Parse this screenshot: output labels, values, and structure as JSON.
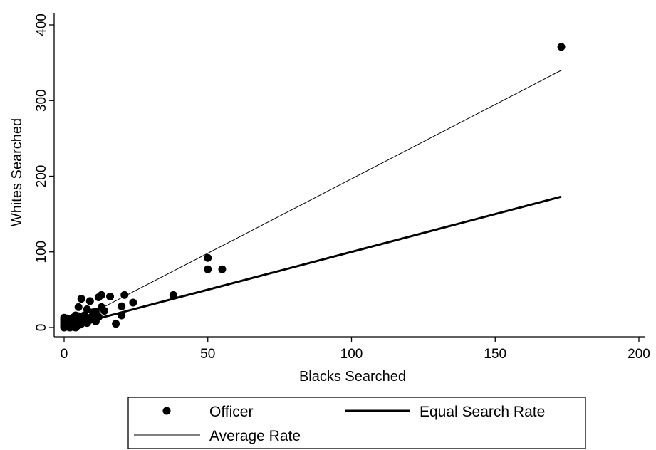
{
  "chart_data": {
    "type": "scatter",
    "xlabel": "Blacks Searched",
    "ylabel": "Whites Searched",
    "xlim": [
      0,
      200
    ],
    "ylim": [
      0,
      400
    ],
    "x_ticks": [
      0,
      50,
      100,
      150,
      200
    ],
    "y_ticks": [
      0,
      100,
      200,
      300,
      400
    ],
    "grid": false,
    "legend_position": "bottom",
    "series": [
      {
        "name": "Officer",
        "kind": "points",
        "color": "#000000",
        "points": [
          [
            0,
            0
          ],
          [
            0,
            2
          ],
          [
            0,
            4
          ],
          [
            0,
            7
          ],
          [
            0,
            10
          ],
          [
            0,
            13
          ],
          [
            1,
            1
          ],
          [
            1,
            3
          ],
          [
            1,
            6
          ],
          [
            1,
            9
          ],
          [
            1,
            12
          ],
          [
            2,
            0
          ],
          [
            2,
            2
          ],
          [
            2,
            5
          ],
          [
            2,
            8
          ],
          [
            2,
            11
          ],
          [
            3,
            1
          ],
          [
            3,
            3
          ],
          [
            3,
            6
          ],
          [
            3,
            9
          ],
          [
            3,
            13
          ],
          [
            4,
            0
          ],
          [
            4,
            2
          ],
          [
            4,
            5
          ],
          [
            4,
            8
          ],
          [
            4,
            12
          ],
          [
            4,
            16
          ],
          [
            5,
            3
          ],
          [
            5,
            7
          ],
          [
            5,
            11
          ],
          [
            5,
            15
          ],
          [
            5,
            27
          ],
          [
            6,
            5
          ],
          [
            6,
            10
          ],
          [
            6,
            14
          ],
          [
            6,
            38
          ],
          [
            7,
            8
          ],
          [
            7,
            12
          ],
          [
            7,
            16
          ],
          [
            8,
            6
          ],
          [
            8,
            13
          ],
          [
            8,
            24
          ],
          [
            9,
            10
          ],
          [
            9,
            35
          ],
          [
            10,
            12
          ],
          [
            10,
            20
          ],
          [
            11,
            8
          ],
          [
            11,
            21
          ],
          [
            12,
            14
          ],
          [
            12,
            40
          ],
          [
            13,
            27
          ],
          [
            13,
            43
          ],
          [
            14,
            22
          ],
          [
            16,
            41
          ],
          [
            18,
            5
          ],
          [
            20,
            16
          ],
          [
            20,
            28
          ],
          [
            21,
            43
          ],
          [
            24,
            33
          ],
          [
            38,
            43
          ],
          [
            50,
            77
          ],
          [
            50,
            92
          ],
          [
            55,
            77
          ],
          [
            173,
            371
          ]
        ]
      },
      {
        "name": "Equal Search Rate",
        "kind": "line",
        "color": "#000000",
        "points": [
          [
            0,
            0
          ],
          [
            173,
            173
          ]
        ]
      },
      {
        "name": "Average Rate",
        "kind": "line",
        "color": "#000000",
        "points": [
          [
            0,
            0
          ],
          [
            173,
            340
          ]
        ]
      }
    ]
  }
}
